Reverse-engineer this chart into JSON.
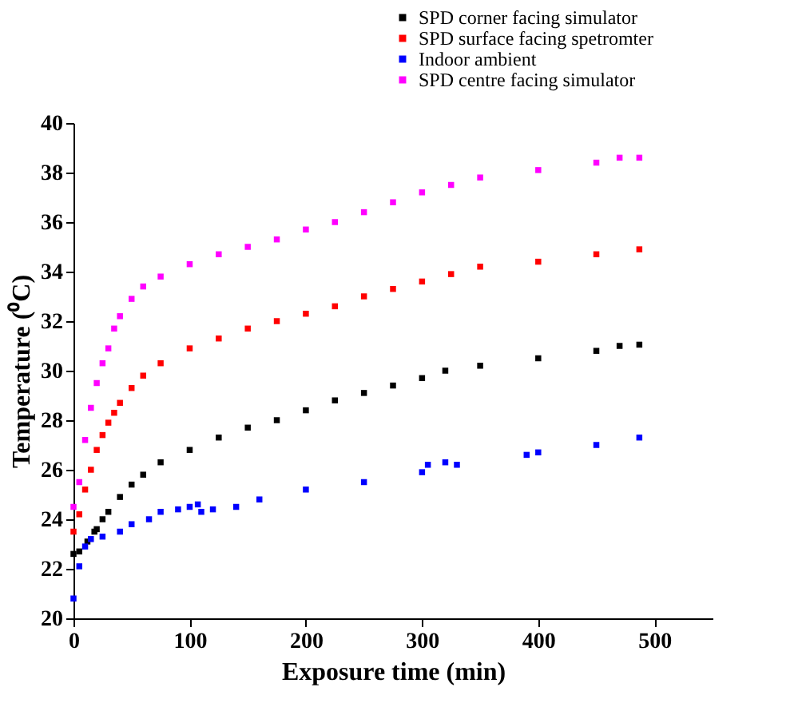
{
  "chart_data": {
    "type": "scatter",
    "xlabel": "Exposure time (min)",
    "ylabel": "Temperature (⁰C)",
    "xlim": [
      0,
      550
    ],
    "xticks": [
      0,
      100,
      200,
      300,
      400,
      500
    ],
    "ylim": [
      20,
      40
    ],
    "yticks": [
      20,
      22,
      24,
      26,
      28,
      30,
      32,
      34,
      36,
      38,
      40
    ],
    "grid": false,
    "legend": "top right",
    "marker": "square",
    "series": [
      {
        "name": "SPD corner facing simulator",
        "color": "#000000",
        "x": [
          0,
          5,
          12,
          18,
          20,
          25,
          30,
          40,
          50,
          60,
          75,
          100,
          125,
          150,
          175,
          200,
          225,
          250,
          275,
          300,
          320,
          350,
          400,
          450,
          470,
          487
        ],
        "values": [
          22.6,
          22.7,
          23.1,
          23.5,
          23.6,
          24.0,
          24.3,
          24.9,
          25.4,
          25.8,
          26.3,
          26.8,
          27.3,
          27.7,
          28.0,
          28.4,
          28.8,
          29.1,
          29.4,
          29.7,
          30.0,
          30.2,
          30.5,
          30.8,
          31.0,
          31.05
        ]
      },
      {
        "name": "SPD surface facing spetromter",
        "color": "#ff0000",
        "x": [
          0,
          5,
          10,
          15,
          20,
          25,
          30,
          35,
          40,
          50,
          60,
          75,
          100,
          125,
          150,
          175,
          200,
          225,
          250,
          275,
          300,
          325,
          350,
          400,
          450,
          487
        ],
        "values": [
          23.5,
          24.2,
          25.2,
          26.0,
          26.8,
          27.4,
          27.9,
          28.3,
          28.7,
          29.3,
          29.8,
          30.3,
          30.9,
          31.3,
          31.7,
          32.0,
          32.3,
          32.6,
          33.0,
          33.3,
          33.6,
          33.9,
          34.2,
          34.4,
          34.7,
          34.9
        ]
      },
      {
        "name": "Indoor ambient",
        "color": "#0000ff",
        "x": [
          0,
          5,
          10,
          15,
          25,
          40,
          50,
          65,
          75,
          90,
          100,
          107,
          110,
          120,
          140,
          160,
          200,
          250,
          300,
          305,
          320,
          330,
          390,
          400,
          450,
          487
        ],
        "values": [
          20.8,
          22.1,
          22.9,
          23.2,
          23.3,
          23.5,
          23.8,
          24.0,
          24.3,
          24.4,
          24.5,
          24.6,
          24.3,
          24.4,
          24.5,
          24.8,
          25.2,
          25.5,
          25.9,
          26.2,
          26.3,
          26.2,
          26.6,
          26.7,
          27.0,
          27.3
        ]
      },
      {
        "name": "SPD centre facing simulator",
        "color": "#ff00ff",
        "x": [
          0,
          5,
          10,
          15,
          20,
          25,
          30,
          35,
          40,
          50,
          60,
          75,
          100,
          125,
          150,
          175,
          200,
          225,
          250,
          275,
          300,
          325,
          350,
          400,
          450,
          470,
          487
        ],
        "values": [
          24.5,
          25.5,
          27.2,
          28.5,
          29.5,
          30.3,
          30.9,
          31.7,
          32.2,
          32.9,
          33.4,
          33.8,
          34.3,
          34.7,
          35.0,
          35.3,
          35.7,
          36.0,
          36.4,
          36.8,
          37.2,
          37.5,
          37.8,
          38.1,
          38.4,
          38.6,
          38.6
        ]
      }
    ]
  }
}
